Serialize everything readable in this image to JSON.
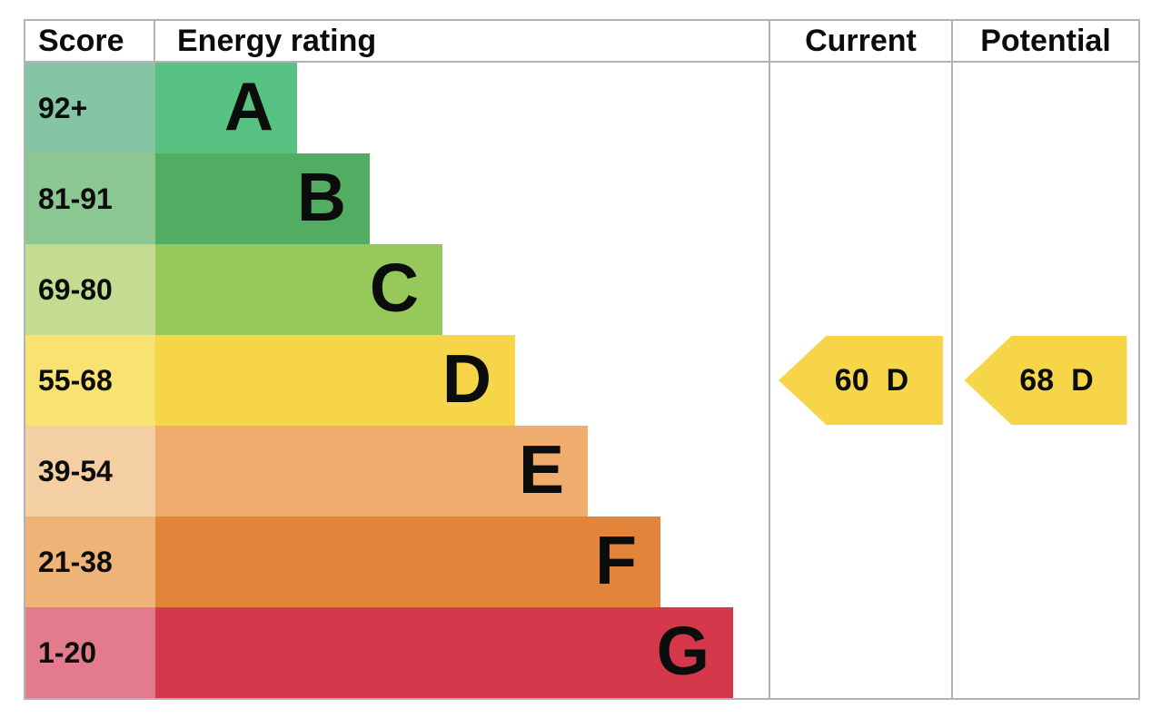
{
  "header": {
    "score": "Score",
    "energy_rating": "Energy rating",
    "current": "Current",
    "potential": "Potential"
  },
  "bands": [
    {
      "score": "92+",
      "letter": "A",
      "bar_color": "#57c282",
      "score_bg": "#86c5a3"
    },
    {
      "score": "81-91",
      "letter": "B",
      "bar_color": "#52ad63",
      "score_bg": "#8cc791"
    },
    {
      "score": "69-80",
      "letter": "C",
      "bar_color": "#96c85a",
      "score_bg": "#c3dc91"
    },
    {
      "score": "55-68",
      "letter": "D",
      "bar_color": "#f6d648",
      "score_bg": "#f8e272"
    },
    {
      "score": "39-54",
      "letter": "E",
      "bar_color": "#f0ac6d",
      "score_bg": "#f4cfa3"
    },
    {
      "score": "21-38",
      "letter": "F",
      "bar_color": "#e2853b",
      "score_bg": "#edb377"
    },
    {
      "score": "1-20",
      "letter": "G",
      "bar_color": "#d5384b",
      "score_bg": "#e27b8b"
    }
  ],
  "current": {
    "value": "60",
    "letter": "D",
    "color": "#f6d648"
  },
  "potential": {
    "value": "68",
    "letter": "D",
    "color": "#f6d648"
  },
  "border_color": "#b1b4b6",
  "text_color": "#0b0c0c",
  "chart_data": {
    "type": "bar",
    "title": "Energy rating",
    "orientation": "horizontal",
    "categories": [
      "A",
      "B",
      "C",
      "D",
      "E",
      "F",
      "G"
    ],
    "score_ranges": [
      "92+",
      "81-91",
      "69-80",
      "55-68",
      "39-54",
      "21-38",
      "1-20"
    ],
    "band_colors": [
      "#57c282",
      "#52ad63",
      "#96c85a",
      "#f6d648",
      "#f0ac6d",
      "#e2853b",
      "#d5384b"
    ],
    "bar_relative_lengths": [
      1,
      1.51,
      2.02,
      2.53,
      3.04,
      3.56,
      4.08
    ],
    "columns": [
      "Score",
      "Energy rating",
      "Current",
      "Potential"
    ],
    "current": {
      "score": 60,
      "rating": "D"
    },
    "potential": {
      "score": 68,
      "rating": "D"
    },
    "legend_position": "none",
    "grid": false
  }
}
